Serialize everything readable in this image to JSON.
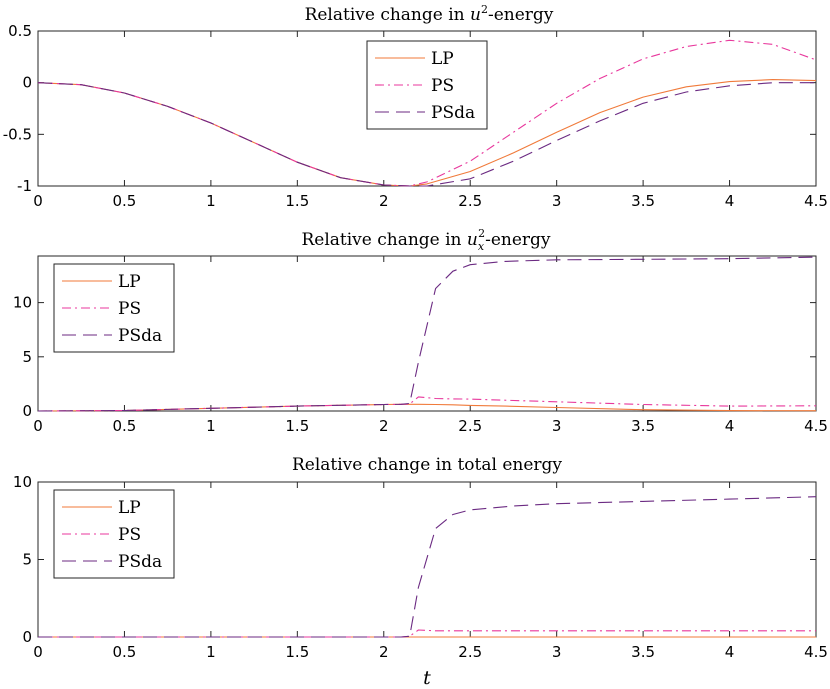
{
  "chart_data": [
    {
      "type": "line",
      "title": "Relative change in u²-energy",
      "title_parts": [
        "Relative change in ",
        "u",
        "2",
        "-energy"
      ],
      "xlabel": "",
      "ylabel": "",
      "xlim": [
        0,
        4.5
      ],
      "ylim": [
        -1,
        0.5
      ],
      "xticks": [
        "0",
        "0.5",
        "1",
        "1.5",
        "2",
        "2.5",
        "3",
        "3.5",
        "4",
        "4.5"
      ],
      "yticks": [
        "-1",
        "-0.5",
        "0",
        "0.5"
      ],
      "legend_position": "top-center",
      "x": [
        0,
        0.25,
        0.5,
        0.75,
        1,
        1.25,
        1.5,
        1.75,
        2,
        2.15,
        2.25,
        2.5,
        2.75,
        3,
        3.25,
        3.5,
        3.75,
        4,
        4.25,
        4.5
      ],
      "series": [
        {
          "name": "LP",
          "color": "#f07a3a",
          "style": "solid",
          "values": [
            0,
            -0.02,
            -0.1,
            -0.23,
            -0.39,
            -0.58,
            -0.77,
            -0.92,
            -0.99,
            -1.0,
            -0.98,
            -0.86,
            -0.68,
            -0.48,
            -0.29,
            -0.14,
            -0.04,
            0.01,
            0.03,
            0.02
          ]
        },
        {
          "name": "PS",
          "color": "#e8379c",
          "style": "dashdot",
          "values": [
            0,
            -0.02,
            -0.1,
            -0.23,
            -0.39,
            -0.58,
            -0.77,
            -0.92,
            -0.99,
            -1.0,
            -0.96,
            -0.76,
            -0.48,
            -0.2,
            0.04,
            0.23,
            0.35,
            0.41,
            0.37,
            0.22
          ]
        },
        {
          "name": "PSda",
          "color": "#6b2a82",
          "style": "dashed",
          "values": [
            0,
            -0.02,
            -0.1,
            -0.23,
            -0.39,
            -0.58,
            -0.77,
            -0.92,
            -0.99,
            -1.0,
            -1.0,
            -0.93,
            -0.76,
            -0.56,
            -0.37,
            -0.2,
            -0.09,
            -0.03,
            0.0,
            0.0
          ]
        }
      ]
    },
    {
      "type": "line",
      "title": "Relative change in u_x²-energy",
      "title_parts": [
        "Relative change in ",
        "u",
        "x",
        "2",
        "-energy"
      ],
      "xlabel": "",
      "ylabel": "",
      "xlim": [
        0,
        4.5
      ],
      "ylim": [
        0,
        14.3
      ],
      "xticks": [
        "0",
        "0.5",
        "1",
        "1.5",
        "2",
        "2.5",
        "3",
        "3.5",
        "4",
        "4.5"
      ],
      "yticks": [
        "0",
        "5",
        "10"
      ],
      "legend_position": "top-left",
      "x": [
        0,
        0.5,
        1,
        1.5,
        2,
        2.1,
        2.15,
        2.2,
        2.3,
        2.4,
        2.5,
        2.7,
        3,
        3.5,
        4,
        4.5
      ],
      "series": [
        {
          "name": "LP",
          "color": "#f07a3a",
          "style": "solid",
          "values": [
            0,
            0.05,
            0.25,
            0.45,
            0.6,
            0.62,
            0.62,
            0.62,
            0.6,
            0.57,
            0.52,
            0.45,
            0.32,
            0.12,
            0.04,
            0.03
          ]
        },
        {
          "name": "PS",
          "color": "#e8379c",
          "style": "dashdot",
          "values": [
            0,
            0.05,
            0.25,
            0.45,
            0.6,
            0.62,
            0.65,
            1.3,
            1.15,
            1.12,
            1.1,
            1.0,
            0.85,
            0.6,
            0.45,
            0.48
          ]
        },
        {
          "name": "PSda",
          "color": "#6b2a82",
          "style": "dashed",
          "values": [
            0,
            0.05,
            0.25,
            0.45,
            0.6,
            0.62,
            0.7,
            4.5,
            11.3,
            12.9,
            13.5,
            13.8,
            13.95,
            14.0,
            14.05,
            14.2
          ]
        }
      ]
    },
    {
      "type": "line",
      "title": "Relative change in total energy",
      "title_parts": [
        "Relative change in total energy"
      ],
      "xlabel": "t",
      "ylabel": "",
      "xlim": [
        0,
        4.5
      ],
      "ylim": [
        0,
        10
      ],
      "xticks": [
        "0",
        "0.5",
        "1",
        "1.5",
        "2",
        "2.5",
        "3",
        "3.5",
        "4",
        "4.5"
      ],
      "yticks": [
        "0",
        "5",
        "10"
      ],
      "legend_position": "top-left",
      "x": [
        0,
        0.5,
        1,
        1.5,
        2,
        2.1,
        2.15,
        2.2,
        2.3,
        2.4,
        2.5,
        2.75,
        3,
        3.5,
        4,
        4.5
      ],
      "series": [
        {
          "name": "LP",
          "color": "#f07a3a",
          "style": "solid",
          "values": [
            0,
            0,
            0,
            0,
            0,
            0,
            0,
            0,
            0,
            0,
            0,
            0,
            0,
            0,
            0,
            0
          ]
        },
        {
          "name": "PS",
          "color": "#e8379c",
          "style": "dashdot",
          "values": [
            0,
            0,
            0,
            0,
            0,
            0,
            0.05,
            0.45,
            0.4,
            0.4,
            0.4,
            0.4,
            0.4,
            0.4,
            0.4,
            0.4
          ]
        },
        {
          "name": "PSda",
          "color": "#6b2a82",
          "style": "dashed",
          "values": [
            0,
            0,
            0,
            0,
            0,
            0,
            0.05,
            3.2,
            7.0,
            7.9,
            8.2,
            8.45,
            8.6,
            8.75,
            8.9,
            9.05
          ]
        }
      ]
    }
  ]
}
